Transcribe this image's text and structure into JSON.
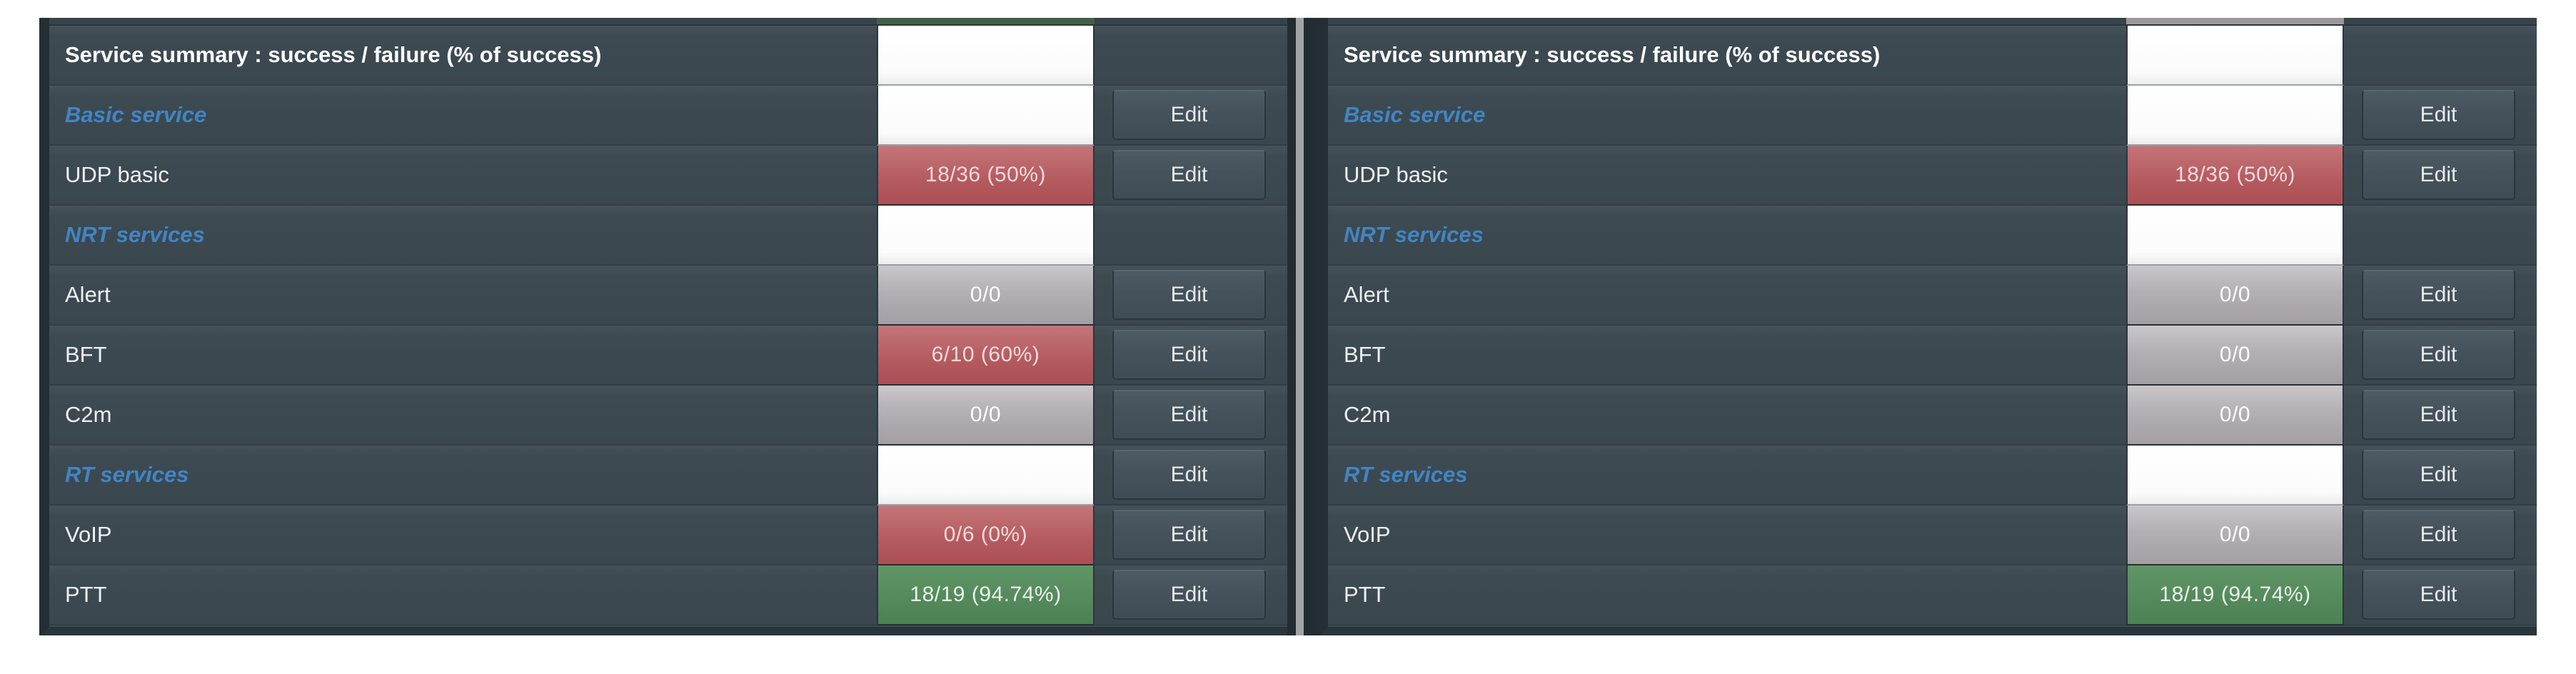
{
  "edit_label": "Edit",
  "colors": {
    "row_background": "#3d4a52",
    "section_blue": "#4285c2",
    "failure_red": "#b45a5f",
    "success_green": "#548a5c",
    "neutral_gray": "#b3b0b3",
    "empty_cell_white": "#fbfbfb",
    "divider_light": "#a2a4a3"
  },
  "panels": [
    {
      "side": "left",
      "cutoff_color": "#426048",
      "rows": [
        {
          "label": "Service summary : success / failure (% of success)",
          "type": "header",
          "value": "",
          "cell": "white",
          "edit": false
        },
        {
          "label": "Basic service",
          "type": "section",
          "value": "",
          "cell": "white",
          "edit": true
        },
        {
          "label": "UDP basic",
          "type": "service",
          "value": "18/36 (50%)",
          "cell": "red",
          "edit": true
        },
        {
          "label": "NRT services",
          "type": "section",
          "value": "",
          "cell": "white",
          "edit": false
        },
        {
          "label": "Alert",
          "type": "service",
          "value": "0/0",
          "cell": "gray",
          "edit": true
        },
        {
          "label": "BFT",
          "type": "service",
          "value": "6/10 (60%)",
          "cell": "red",
          "edit": true
        },
        {
          "label": "C2m",
          "type": "service",
          "value": "0/0",
          "cell": "gray",
          "edit": true
        },
        {
          "label": "RT services",
          "type": "section",
          "value": "",
          "cell": "white",
          "edit": true
        },
        {
          "label": "VoIP",
          "type": "service",
          "value": "0/6 (0%)",
          "cell": "red",
          "edit": true
        },
        {
          "label": "PTT",
          "type": "service",
          "value": "18/19 (94.74%)",
          "cell": "green",
          "edit": true
        }
      ]
    },
    {
      "side": "right",
      "cutoff_color": "#9b989b",
      "rows": [
        {
          "label": "Service summary : success / failure (% of success)",
          "type": "header",
          "value": "",
          "cell": "white",
          "edit": false
        },
        {
          "label": "Basic service",
          "type": "section",
          "value": "",
          "cell": "white",
          "edit": true
        },
        {
          "label": "UDP basic",
          "type": "service",
          "value": "18/36 (50%)",
          "cell": "red",
          "edit": true
        },
        {
          "label": "NRT services",
          "type": "section",
          "value": "",
          "cell": "white",
          "edit": false
        },
        {
          "label": "Alert",
          "type": "service",
          "value": "0/0",
          "cell": "gray",
          "edit": true
        },
        {
          "label": "BFT",
          "type": "service",
          "value": "0/0",
          "cell": "gray",
          "edit": true
        },
        {
          "label": "C2m",
          "type": "service",
          "value": "0/0",
          "cell": "gray",
          "edit": true
        },
        {
          "label": "RT services",
          "type": "section",
          "value": "",
          "cell": "white",
          "edit": true
        },
        {
          "label": "VoIP",
          "type": "service",
          "value": "0/0",
          "cell": "gray",
          "edit": true
        },
        {
          "label": "PTT",
          "type": "service",
          "value": "18/19 (94.74%)",
          "cell": "green",
          "edit": true
        }
      ]
    }
  ]
}
